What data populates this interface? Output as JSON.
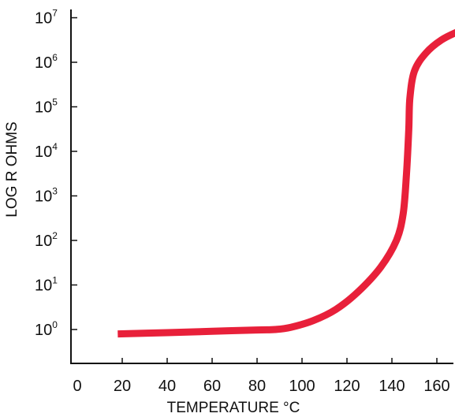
{
  "chart_data": {
    "type": "line",
    "title": "",
    "xlabel": "TEMPERATURE °C",
    "ylabel": "LOG R OHMS",
    "x_ticks": [
      0,
      20,
      40,
      60,
      80,
      100,
      120,
      140,
      160
    ],
    "y_ticks": [
      {
        "base": "10",
        "exp": "0",
        "value": 0
      },
      {
        "base": "10",
        "exp": "1",
        "value": 1
      },
      {
        "base": "10",
        "exp": "2",
        "value": 2
      },
      {
        "base": "10",
        "exp": "3",
        "value": 3
      },
      {
        "base": "10",
        "exp": "4",
        "value": 4
      },
      {
        "base": "10",
        "exp": "5",
        "value": 5
      },
      {
        "base": "10",
        "exp": "6",
        "value": 6
      },
      {
        "base": "10",
        "exp": "7",
        "value": 7
      }
    ],
    "y_scale": "log10",
    "xlim": [
      0,
      185
    ],
    "ylim": [
      -0.8,
      7.2
    ],
    "grid": false,
    "series": [
      {
        "color": "#e8203a",
        "points": [
          {
            "x": 18,
            "y": -0.1
          },
          {
            "x": 40,
            "y": -0.07
          },
          {
            "x": 60,
            "y": -0.04
          },
          {
            "x": 80,
            "y": -0.01
          },
          {
            "x": 88,
            "y": 0.0
          },
          {
            "x": 95,
            "y": 0.05
          },
          {
            "x": 105,
            "y": 0.2
          },
          {
            "x": 115,
            "y": 0.45
          },
          {
            "x": 125,
            "y": 0.85
          },
          {
            "x": 135,
            "y": 1.4
          },
          {
            "x": 142,
            "y": 2.0
          },
          {
            "x": 145,
            "y": 2.6
          },
          {
            "x": 146.5,
            "y": 3.5
          },
          {
            "x": 147.5,
            "y": 4.5
          },
          {
            "x": 148,
            "y": 5.2
          },
          {
            "x": 150,
            "y": 5.8
          },
          {
            "x": 155,
            "y": 6.2
          },
          {
            "x": 162,
            "y": 6.5
          },
          {
            "x": 170,
            "y": 6.7
          },
          {
            "x": 178,
            "y": 6.85
          }
        ]
      }
    ]
  }
}
